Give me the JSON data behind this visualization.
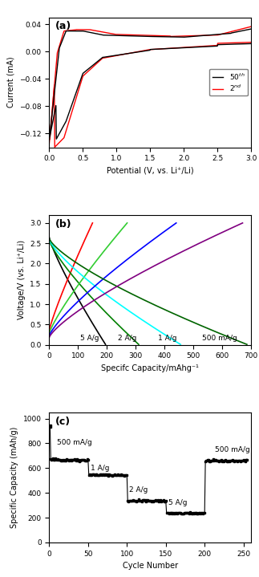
{
  "panel_a": {
    "title": "(a)",
    "xlabel": "Potential (V, vs. Li⁺/Li)",
    "ylabel": "Current (mA)",
    "xlim": [
      0,
      3
    ],
    "ylim": [
      -0.14,
      0.05
    ],
    "yticks": [
      0.04,
      0.0,
      -0.04,
      -0.08,
      -0.12
    ],
    "colors": [
      "black",
      "red"
    ]
  },
  "panel_b": {
    "title": "(b)",
    "xlabel": "Specifc Capacity/mAhg⁻¹",
    "ylabel": "Voltage/V (vs. Li⁺/Li)",
    "xlim": [
      0,
      700
    ],
    "ylim": [
      0,
      3.2
    ],
    "yticks": [
      0.0,
      0.5,
      1.0,
      1.5,
      2.0,
      2.5,
      3.0
    ],
    "xticks": [
      0,
      100,
      200,
      300,
      400,
      500,
      600,
      700
    ]
  },
  "panel_c": {
    "title": "(c)",
    "xlabel": "Cycle Number",
    "ylabel": "Specific Capacity (mAh/g)",
    "xlim": [
      0,
      260
    ],
    "ylim": [
      0,
      1050
    ],
    "yticks": [
      0,
      200,
      400,
      600,
      800,
      1000
    ],
    "xticks": [
      0,
      50,
      100,
      150,
      200,
      250
    ]
  }
}
